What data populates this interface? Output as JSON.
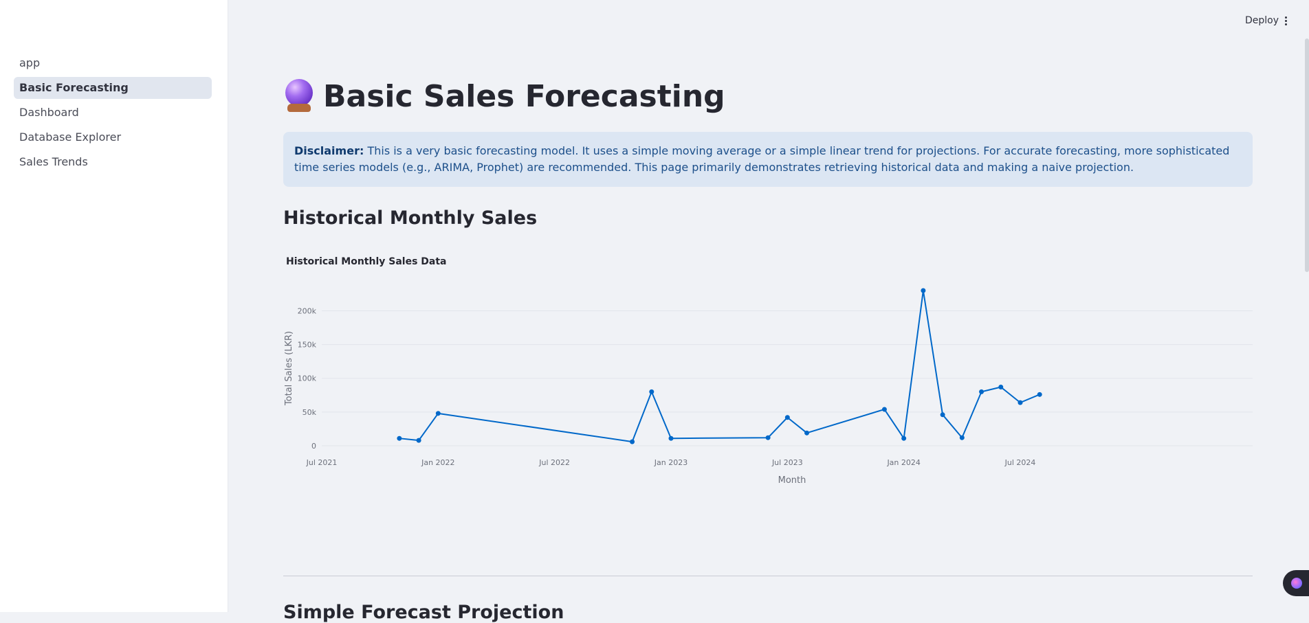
{
  "sidebar": {
    "items": [
      {
        "label": "app"
      },
      {
        "label": "Basic Forecasting"
      },
      {
        "label": "Dashboard"
      },
      {
        "label": "Database Explorer"
      },
      {
        "label": "Sales Trends"
      }
    ],
    "active_index": 1
  },
  "topbar": {
    "deploy_label": "Deploy",
    "menu_icon": "kebab-menu-icon"
  },
  "page": {
    "title": "Basic Sales Forecasting",
    "title_icon": "crystal-ball-icon",
    "disclaimer_bold": "Disclaimer:",
    "disclaimer_text": "This is a very basic forecasting model. It uses a simple moving average or a simple linear trend for projections. For accurate forecasting, more sophisticated time series models (e.g., ARIMA, Prophet) are recommended. This page primarily demonstrates retrieving historical data and making a naive projection.",
    "section_title": "Historical Monthly Sales",
    "next_section_title": "Simple Forecast Projection"
  },
  "chart_data": {
    "type": "line",
    "title": "Historical Monthly Sales Data",
    "xlabel": "Month",
    "ylabel": "Total Sales (LKR)",
    "x_tick_labels": [
      "Jul 2021",
      "Jan 2022",
      "Jul 2022",
      "Jan 2023",
      "Jul 2023",
      "Jan 2024",
      "Jul 2024"
    ],
    "y_tick_labels": [
      "0",
      "50k",
      "100k",
      "150k",
      "200k"
    ],
    "ylim": [
      0,
      230000
    ],
    "grid": true,
    "line_color": "#0068c9",
    "series": [
      {
        "x": [
          "2021-11",
          "2021-12",
          "2022-01",
          "2022-11",
          "2022-12",
          "2023-01",
          "2023-06",
          "2023-07",
          "2023-08",
          "2023-12",
          "2024-01",
          "2024-02",
          "2024-03",
          "2024-04",
          "2024-05",
          "2024-06",
          "2024-07",
          "2024-08"
        ],
        "values": [
          11000,
          8000,
          48000,
          6000,
          80000,
          11000,
          12000,
          42000,
          19000,
          54000,
          11000,
          230000,
          46000,
          12000,
          80000,
          87000,
          64000,
          76000
        ]
      }
    ]
  }
}
